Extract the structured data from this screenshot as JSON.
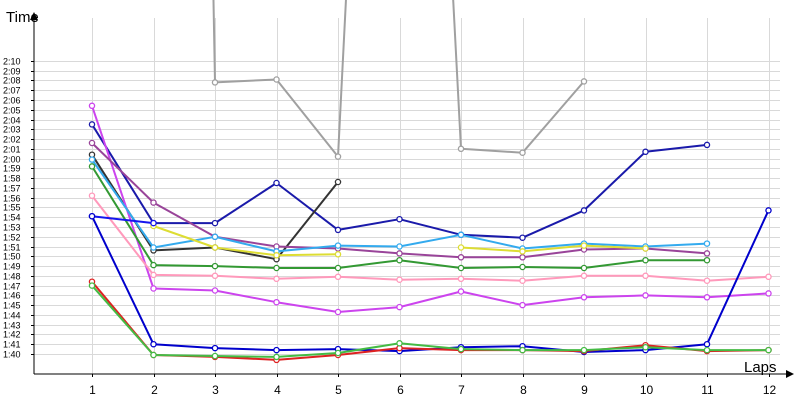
{
  "chart_data": {
    "type": "line",
    "xlabel": "Laps",
    "ylabel": "Time",
    "x": [
      1,
      2,
      3,
      4,
      5,
      6,
      7,
      8,
      9,
      10,
      11,
      12
    ],
    "y_tick_labels": [
      "1:40",
      "1:41",
      "1:42",
      "1:43",
      "1:44",
      "1:45",
      "1:46",
      "1:47",
      "1:48",
      "1:49",
      "1:50",
      "1:51",
      "1:52",
      "1:53",
      "1:54",
      "1:55",
      "1:56",
      "1:57",
      "1:58",
      "1:59",
      "2:00",
      "2:01",
      "2:02",
      "2:03",
      "2:04",
      "2:05",
      "2:06",
      "2:07",
      "2:08",
      "2:09",
      "2:10"
    ],
    "ylim_seconds": [
      97,
      142
    ],
    "grid": true,
    "series": [
      {
        "color": "#a0a0a0",
        "values": [
          null,
          null,
          127.8,
          128.1,
          120.2,
          null,
          121.0,
          120.6,
          127.9,
          null,
          null,
          null
        ],
        "points": [
          [
            2.95,
            145
          ],
          [
            3,
            127.8
          ],
          [
            4,
            128.1
          ],
          [
            5,
            120.2
          ],
          [
            5.2,
            145
          ],
          null,
          [
            6.8,
            145
          ],
          [
            7,
            121.0
          ],
          [
            8,
            120.6
          ],
          [
            9,
            127.9
          ]
        ]
      },
      {
        "color": "#1a1aaa",
        "values": [
          123.5,
          113.4,
          113.4,
          117.5,
          112.7,
          113.8,
          112.2,
          111.9,
          114.7,
          120.7,
          121.4,
          null
        ]
      },
      {
        "color": "#333333",
        "values": [
          120.4,
          110.6,
          110.9,
          109.7,
          117.6,
          null,
          null,
          null,
          null,
          null,
          null,
          null
        ]
      },
      {
        "color": "#cc44ee",
        "values": [
          125.4,
          106.7,
          106.5,
          105.3,
          104.3,
          104.8,
          106.4,
          105.0,
          105.8,
          106.0,
          105.8,
          106.2
        ]
      },
      {
        "color": "#994499",
        "values": [
          121.6,
          115.5,
          112.0,
          111.0,
          110.8,
          110.3,
          109.9,
          109.9,
          110.7,
          110.8,
          110.3,
          null
        ]
      },
      {
        "color": "#33aaee",
        "values": [
          119.9,
          110.9,
          112.0,
          110.5,
          111.1,
          111.0,
          112.2,
          110.8,
          111.3,
          111.0,
          111.3,
          null
        ]
      },
      {
        "color": "#dddd33",
        "values": [
          null,
          113.1,
          110.9,
          110.1,
          110.2,
          null,
          110.9,
          110.5,
          111.1,
          110.8,
          null,
          null
        ]
      },
      {
        "color": "#339933",
        "values": [
          119.2,
          109.1,
          109.0,
          108.8,
          108.8,
          109.6,
          108.8,
          108.9,
          108.8,
          109.6,
          109.6,
          null
        ]
      },
      {
        "color": "#ff99bb",
        "values": [
          116.2,
          108.1,
          108.0,
          107.7,
          107.9,
          107.6,
          107.7,
          107.5,
          108.0,
          108.0,
          107.5,
          107.9
        ]
      },
      {
        "color": "#1515ee",
        "values": [
          114.1,
          113.4,
          null,
          null,
          null,
          null,
          null,
          null,
          null,
          null,
          null,
          null
        ]
      },
      {
        "color": "#0000cc",
        "values": [
          114.1,
          101.0,
          100.6,
          100.4,
          100.5,
          100.3,
          100.7,
          100.8,
          100.2,
          100.4,
          101.0,
          114.7
        ]
      },
      {
        "color": "#dd2222",
        "values": [
          107.4,
          99.9,
          99.7,
          99.4,
          99.9,
          100.6,
          100.4,
          100.4,
          100.3,
          100.9,
          100.3,
          100.4
        ]
      },
      {
        "color": "#44bb44",
        "values": [
          107.0,
          99.9,
          99.8,
          99.7,
          100.1,
          101.1,
          100.5,
          100.4,
          100.4,
          100.7,
          100.4,
          100.4
        ]
      }
    ]
  }
}
